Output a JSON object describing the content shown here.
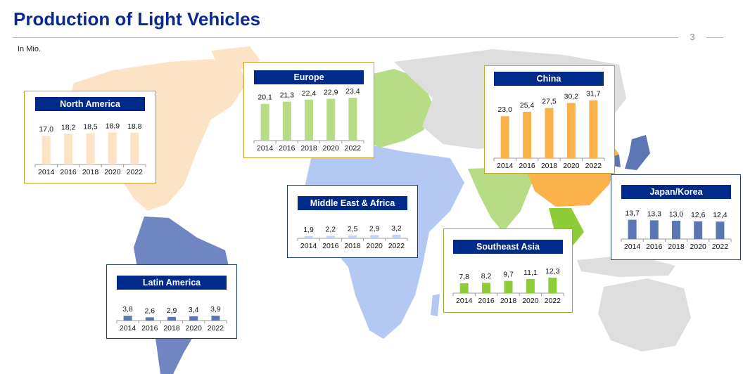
{
  "header": {
    "title": "Production of Light Vehicles",
    "page_number": "3",
    "unit_note": "In Mio."
  },
  "colors": {
    "title_blue": "#0b2a8f",
    "label_navy": "#002a8a",
    "land_grey": "#dedede",
    "north_america": "#fde3c6",
    "europe": "#b6dc85",
    "china": "#fcb24a",
    "middle_east_africa": "#b4c8f4",
    "southeast_asia": "#8fcc3a",
    "japan_korea": "#5c76b3",
    "latin_america": "#6f86c2"
  },
  "chart_data": [
    {
      "type": "bar",
      "title": "North America",
      "categories": [
        "2014",
        "2016",
        "2018",
        "2020",
        "2022"
      ],
      "labels": [
        "17,0",
        "18,2",
        "18,5",
        "18,9",
        "18,8"
      ],
      "values": [
        17.0,
        18.2,
        18.5,
        18.9,
        18.8
      ],
      "bar_color": "#fde3c6",
      "border_color": "#c3a12b"
    },
    {
      "type": "bar",
      "title": "Europe",
      "categories": [
        "2014",
        "2016",
        "2018",
        "2020",
        "2022"
      ],
      "labels": [
        "20,1",
        "21,3",
        "22,4",
        "22,9",
        "23,4"
      ],
      "values": [
        20.1,
        21.3,
        22.4,
        22.9,
        23.4
      ],
      "bar_color": "#b6dc85",
      "border_color": "#c3a12b"
    },
    {
      "type": "bar",
      "title": "China",
      "categories": [
        "2014",
        "2016",
        "2018",
        "2020",
        "2022"
      ],
      "labels": [
        "23,0",
        "25,4",
        "27,5",
        "30,2",
        "31,7"
      ],
      "values": [
        23.0,
        25.4,
        27.5,
        30.2,
        31.7
      ],
      "bar_color": "#fcb24a",
      "border_color": "#c3a12b"
    },
    {
      "type": "bar",
      "title": "Middle East & Africa",
      "categories": [
        "2014",
        "2016",
        "2018",
        "2020",
        "2022"
      ],
      "labels": [
        "1,9",
        "2,2",
        "2,5",
        "2,9",
        "3,2"
      ],
      "values": [
        1.9,
        2.2,
        2.5,
        2.9,
        3.2
      ],
      "bar_color": "#c5d4f6",
      "border_color": "#1f3a7a"
    },
    {
      "type": "bar",
      "title": "Japan/Korea",
      "categories": [
        "2014",
        "2016",
        "2018",
        "2020",
        "2022"
      ],
      "labels": [
        "13,7",
        "13,3",
        "13,0",
        "12,6",
        "12,4"
      ],
      "values": [
        13.7,
        13.3,
        13.0,
        12.6,
        12.4
      ],
      "bar_color": "#5c76b3",
      "border_color": "#1f3a7a"
    },
    {
      "type": "bar",
      "title": "Southeast Asia",
      "categories": [
        "2014",
        "2016",
        "2018",
        "2020",
        "2022"
      ],
      "labels": [
        "7,8",
        "8,2",
        "9,7",
        "11,1",
        "12,3"
      ],
      "values": [
        7.8,
        8.2,
        9.7,
        11.1,
        12.3
      ],
      "bar_color": "#8fcc3a",
      "border_color": "#8fb03a"
    },
    {
      "type": "bar",
      "title": "Latin America",
      "categories": [
        "2014",
        "2016",
        "2018",
        "2020",
        "2022"
      ],
      "labels": [
        "3,8",
        "2,6",
        "2,9",
        "3,4",
        "3,9"
      ],
      "values": [
        3.8,
        2.6,
        2.9,
        3.4,
        3.9
      ],
      "bar_color": "#5c76b3",
      "border_color": "#1f3a7a"
    }
  ]
}
